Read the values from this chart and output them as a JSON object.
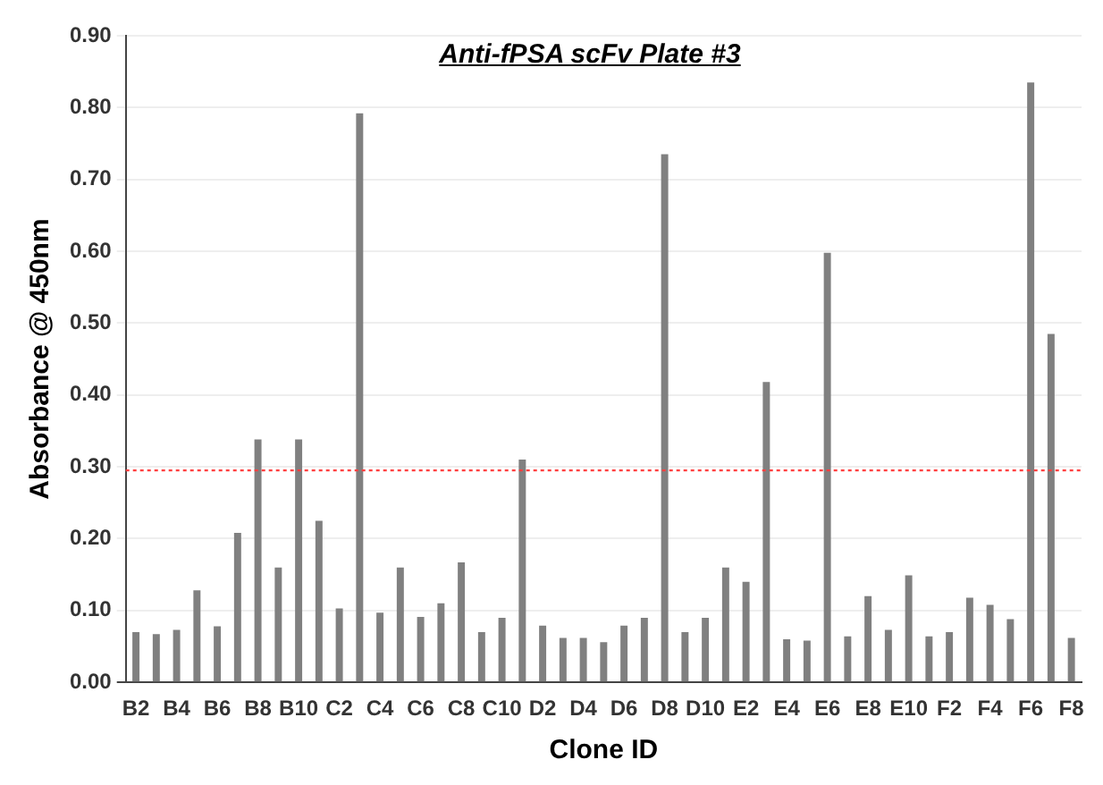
{
  "chart_data": {
    "type": "bar",
    "title": "Anti-fPSA scFv Plate #3",
    "xlabel": "Clone ID",
    "ylabel": "Absorbance @ 450nm",
    "categories": [
      "B2",
      null,
      "B4",
      null,
      "B6",
      null,
      "B8",
      null,
      "B10",
      null,
      "C2",
      null,
      "C4",
      null,
      "C6",
      null,
      "C8",
      null,
      "C10",
      null,
      "D2",
      null,
      "D4",
      null,
      "D6",
      null,
      "D8",
      null,
      "D10",
      null,
      "E2",
      null,
      "E4",
      null,
      "E6",
      null,
      "E8",
      null,
      "E10",
      null,
      "F2",
      null,
      "F4",
      null,
      "F6",
      null,
      "F8"
    ],
    "values": [
      0.07,
      0.067,
      0.073,
      0.128,
      0.078,
      0.208,
      0.338,
      0.16,
      0.338,
      0.225,
      0.103,
      0.792,
      0.097,
      0.16,
      0.091,
      0.11,
      0.167,
      0.07,
      0.09,
      0.31,
      0.079,
      0.062,
      0.062,
      0.056,
      0.079,
      0.09,
      0.735,
      0.07,
      0.09,
      0.16,
      0.14,
      0.418,
      0.06,
      0.058,
      0.598,
      0.064,
      0.12,
      0.073,
      0.149,
      0.064,
      0.07,
      0.118,
      0.108,
      0.088,
      0.835,
      0.485,
      0.062
    ],
    "color": "#808080",
    "ylim": [
      0,
      0.9
    ],
    "yticks": [
      {
        "value": 0,
        "label": "0.00"
      },
      {
        "value": 0.1,
        "label": "0.10"
      },
      {
        "value": 0.2,
        "label": "0.20"
      },
      {
        "value": 0.3,
        "label": "0.30"
      },
      {
        "value": 0.4,
        "label": "0.40"
      },
      {
        "value": 0.5,
        "label": "0.50"
      },
      {
        "value": 0.6,
        "label": "0.60"
      },
      {
        "value": 0.7,
        "label": "0.70"
      },
      {
        "value": 0.8,
        "label": "0.80"
      },
      {
        "value": 0.9,
        "label": "0.90"
      }
    ],
    "grid": "y",
    "ref_lines": [
      {
        "axis": "y",
        "value": 0.295,
        "color": "#ff4040",
        "line_style": "dotted"
      }
    ]
  }
}
